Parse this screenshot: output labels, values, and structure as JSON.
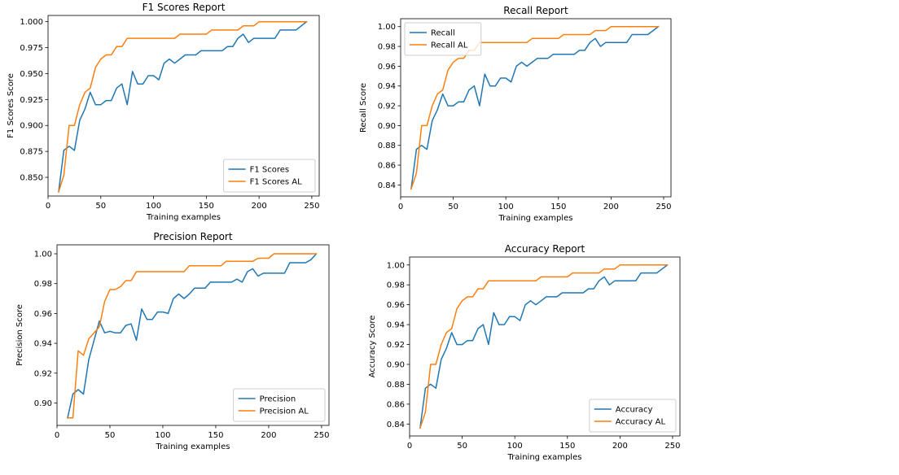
{
  "colors": {
    "series_primary": "#1f77b4",
    "series_al": "#ff7f0e"
  },
  "chart_data": [
    {
      "type": "line",
      "title": "F1 Scores Report",
      "xlabel": "Training examples",
      "ylabel": "F1 Scores Score",
      "xlim": [
        0,
        257
      ],
      "ylim": [
        0.832,
        1.006
      ],
      "xticks": [
        0,
        50,
        100,
        150,
        200,
        250
      ],
      "yticks": [
        0.85,
        0.875,
        0.9,
        0.925,
        0.95,
        0.975,
        1.0
      ],
      "ytick_labels": [
        "0.850",
        "0.875",
        "0.900",
        "0.925",
        "0.950",
        "0.975",
        "1.000"
      ],
      "legend_position": "lower-right",
      "series": [
        {
          "name": "F1 Scores",
          "x": [
            10,
            15,
            20,
            25,
            30,
            35,
            40,
            45,
            50,
            55,
            60,
            65,
            70,
            75,
            80,
            85,
            90,
            95,
            100,
            105,
            110,
            115,
            120,
            125,
            130,
            135,
            140,
            145,
            150,
            155,
            160,
            165,
            170,
            175,
            180,
            185,
            190,
            195,
            200,
            205,
            210,
            215,
            220,
            225,
            230,
            235,
            240,
            245
          ],
          "y": [
            0.836,
            0.876,
            0.88,
            0.876,
            0.905,
            0.916,
            0.932,
            0.92,
            0.92,
            0.924,
            0.924,
            0.936,
            0.94,
            0.92,
            0.952,
            0.94,
            0.94,
            0.948,
            0.948,
            0.944,
            0.96,
            0.964,
            0.96,
            0.964,
            0.968,
            0.968,
            0.968,
            0.972,
            0.972,
            0.972,
            0.972,
            0.972,
            0.976,
            0.976,
            0.984,
            0.988,
            0.98,
            0.984,
            0.984,
            0.984,
            0.984,
            0.984,
            0.992,
            0.992,
            0.992,
            0.992,
            0.996,
            1.0
          ]
        },
        {
          "name": "F1 Scores AL",
          "x": [
            10,
            15,
            20,
            25,
            30,
            35,
            40,
            45,
            50,
            55,
            60,
            65,
            70,
            75,
            80,
            85,
            90,
            95,
            100,
            105,
            110,
            115,
            120,
            125,
            130,
            135,
            140,
            145,
            150,
            155,
            160,
            165,
            170,
            175,
            180,
            185,
            190,
            195,
            200,
            205,
            210,
            215,
            220,
            225,
            230,
            235,
            240,
            245
          ],
          "y": [
            0.836,
            0.852,
            0.9,
            0.9,
            0.92,
            0.932,
            0.936,
            0.956,
            0.964,
            0.968,
            0.968,
            0.976,
            0.976,
            0.984,
            0.984,
            0.984,
            0.984,
            0.984,
            0.984,
            0.984,
            0.984,
            0.984,
            0.984,
            0.988,
            0.988,
            0.988,
            0.988,
            0.988,
            0.988,
            0.992,
            0.992,
            0.992,
            0.992,
            0.992,
            0.992,
            0.996,
            0.996,
            0.996,
            1.0,
            1.0,
            1.0,
            1.0,
            1.0,
            1.0,
            1.0,
            1.0,
            1.0,
            1.0
          ]
        }
      ]
    },
    {
      "type": "line",
      "title": "Recall Report",
      "xlabel": "Training examples",
      "ylabel": "Recall Score",
      "xlim": [
        0,
        257
      ],
      "ylim": [
        0.828,
        1.008
      ],
      "xticks": [
        0,
        50,
        100,
        150,
        200,
        250
      ],
      "yticks": [
        0.84,
        0.86,
        0.88,
        0.9,
        0.92,
        0.94,
        0.96,
        0.98,
        1.0
      ],
      "ytick_labels": [
        "0.84",
        "0.86",
        "0.88",
        "0.90",
        "0.92",
        "0.94",
        "0.96",
        "0.98",
        "1.00"
      ],
      "legend_position": "upper-left",
      "series": [
        {
          "name": "Recall",
          "x": [
            10,
            15,
            20,
            25,
            30,
            35,
            40,
            45,
            50,
            55,
            60,
            65,
            70,
            75,
            80,
            85,
            90,
            95,
            100,
            105,
            110,
            115,
            120,
            125,
            130,
            135,
            140,
            145,
            150,
            155,
            160,
            165,
            170,
            175,
            180,
            185,
            190,
            195,
            200,
            205,
            210,
            215,
            220,
            225,
            230,
            235,
            240,
            245
          ],
          "y": [
            0.836,
            0.876,
            0.88,
            0.876,
            0.905,
            0.916,
            0.932,
            0.92,
            0.92,
            0.924,
            0.924,
            0.936,
            0.94,
            0.92,
            0.952,
            0.94,
            0.94,
            0.948,
            0.948,
            0.944,
            0.96,
            0.964,
            0.96,
            0.964,
            0.968,
            0.968,
            0.968,
            0.972,
            0.972,
            0.972,
            0.972,
            0.972,
            0.976,
            0.976,
            0.984,
            0.988,
            0.98,
            0.984,
            0.984,
            0.984,
            0.984,
            0.984,
            0.992,
            0.992,
            0.992,
            0.992,
            0.996,
            1.0
          ]
        },
        {
          "name": "Recall AL",
          "x": [
            10,
            15,
            20,
            25,
            30,
            35,
            40,
            45,
            50,
            55,
            60,
            65,
            70,
            75,
            80,
            85,
            90,
            95,
            100,
            105,
            110,
            115,
            120,
            125,
            130,
            135,
            140,
            145,
            150,
            155,
            160,
            165,
            170,
            175,
            180,
            185,
            190,
            195,
            200,
            205,
            210,
            215,
            220,
            225,
            230,
            235,
            240,
            245
          ],
          "y": [
            0.836,
            0.852,
            0.9,
            0.9,
            0.92,
            0.932,
            0.936,
            0.956,
            0.964,
            0.968,
            0.968,
            0.976,
            0.976,
            0.984,
            0.984,
            0.984,
            0.984,
            0.984,
            0.984,
            0.984,
            0.984,
            0.984,
            0.984,
            0.988,
            0.988,
            0.988,
            0.988,
            0.988,
            0.988,
            0.992,
            0.992,
            0.992,
            0.992,
            0.992,
            0.992,
            0.996,
            0.996,
            0.996,
            1.0,
            1.0,
            1.0,
            1.0,
            1.0,
            1.0,
            1.0,
            1.0,
            1.0,
            1.0
          ]
        }
      ]
    },
    {
      "type": "line",
      "title": "Precision Report",
      "xlabel": "Training examples",
      "ylabel": "Precision Score",
      "xlim": [
        0,
        257
      ],
      "ylim": [
        0.885,
        1.006
      ],
      "xticks": [
        0,
        50,
        100,
        150,
        200,
        250
      ],
      "yticks": [
        0.9,
        0.92,
        0.94,
        0.96,
        0.98,
        1.0
      ],
      "ytick_labels": [
        "0.90",
        "0.92",
        "0.94",
        "0.96",
        "0.98",
        "1.00"
      ],
      "legend_position": "lower-right",
      "series": [
        {
          "name": "Precision",
          "x": [
            10,
            15,
            20,
            25,
            30,
            35,
            40,
            45,
            50,
            55,
            60,
            65,
            70,
            75,
            80,
            85,
            90,
            95,
            100,
            105,
            110,
            115,
            120,
            125,
            130,
            135,
            140,
            145,
            150,
            155,
            160,
            165,
            170,
            175,
            180,
            185,
            190,
            195,
            200,
            205,
            210,
            215,
            220,
            225,
            230,
            235,
            240,
            245
          ],
          "y": [
            0.89,
            0.906,
            0.909,
            0.906,
            0.929,
            0.942,
            0.955,
            0.947,
            0.948,
            0.947,
            0.947,
            0.952,
            0.953,
            0.942,
            0.963,
            0.956,
            0.956,
            0.961,
            0.961,
            0.96,
            0.97,
            0.973,
            0.97,
            0.973,
            0.977,
            0.977,
            0.977,
            0.981,
            0.981,
            0.981,
            0.981,
            0.981,
            0.983,
            0.981,
            0.988,
            0.99,
            0.985,
            0.987,
            0.987,
            0.987,
            0.987,
            0.987,
            0.994,
            0.994,
            0.994,
            0.994,
            0.996,
            1.0
          ]
        },
        {
          "name": "Precision AL",
          "x": [
            10,
            15,
            20,
            25,
            30,
            35,
            40,
            45,
            50,
            55,
            60,
            65,
            70,
            75,
            80,
            85,
            90,
            95,
            100,
            105,
            110,
            115,
            120,
            125,
            130,
            135,
            140,
            145,
            150,
            155,
            160,
            165,
            170,
            175,
            180,
            185,
            190,
            195,
            200,
            205,
            210,
            215,
            220,
            225,
            230,
            235,
            240,
            245
          ],
          "y": [
            0.89,
            0.89,
            0.935,
            0.932,
            0.943,
            0.947,
            0.951,
            0.968,
            0.976,
            0.976,
            0.978,
            0.982,
            0.982,
            0.988,
            0.988,
            0.988,
            0.988,
            0.988,
            0.988,
            0.988,
            0.988,
            0.988,
            0.988,
            0.992,
            0.992,
            0.992,
            0.992,
            0.992,
            0.992,
            0.992,
            0.995,
            0.995,
            0.995,
            0.995,
            0.995,
            0.995,
            0.997,
            0.997,
            0.997,
            1.0,
            1.0,
            1.0,
            1.0,
            1.0,
            1.0,
            1.0,
            1.0,
            1.0
          ]
        }
      ]
    },
    {
      "type": "line",
      "title": "Accuracy Report",
      "xlabel": "Training examples",
      "ylabel": "Accuracy Score",
      "xlim": [
        0,
        257
      ],
      "ylim": [
        0.828,
        1.008
      ],
      "xticks": [
        0,
        50,
        100,
        150,
        200,
        250
      ],
      "yticks": [
        0.84,
        0.86,
        0.88,
        0.9,
        0.92,
        0.94,
        0.96,
        0.98,
        1.0
      ],
      "ytick_labels": [
        "0.84",
        "0.86",
        "0.88",
        "0.90",
        "0.92",
        "0.94",
        "0.96",
        "0.98",
        "1.00"
      ],
      "legend_position": "lower-right",
      "series": [
        {
          "name": "Accuracy",
          "x": [
            10,
            15,
            20,
            25,
            30,
            35,
            40,
            45,
            50,
            55,
            60,
            65,
            70,
            75,
            80,
            85,
            90,
            95,
            100,
            105,
            110,
            115,
            120,
            125,
            130,
            135,
            140,
            145,
            150,
            155,
            160,
            165,
            170,
            175,
            180,
            185,
            190,
            195,
            200,
            205,
            210,
            215,
            220,
            225,
            230,
            235,
            240,
            245
          ],
          "y": [
            0.836,
            0.876,
            0.88,
            0.876,
            0.905,
            0.916,
            0.932,
            0.92,
            0.92,
            0.924,
            0.924,
            0.936,
            0.94,
            0.92,
            0.952,
            0.94,
            0.94,
            0.948,
            0.948,
            0.944,
            0.96,
            0.964,
            0.96,
            0.964,
            0.968,
            0.968,
            0.968,
            0.972,
            0.972,
            0.972,
            0.972,
            0.972,
            0.976,
            0.976,
            0.984,
            0.988,
            0.98,
            0.984,
            0.984,
            0.984,
            0.984,
            0.984,
            0.992,
            0.992,
            0.992,
            0.992,
            0.996,
            1.0
          ]
        },
        {
          "name": "Accuracy AL",
          "x": [
            10,
            15,
            20,
            25,
            30,
            35,
            40,
            45,
            50,
            55,
            60,
            65,
            70,
            75,
            80,
            85,
            90,
            95,
            100,
            105,
            110,
            115,
            120,
            125,
            130,
            135,
            140,
            145,
            150,
            155,
            160,
            165,
            170,
            175,
            180,
            185,
            190,
            195,
            200,
            205,
            210,
            215,
            220,
            225,
            230,
            235,
            240,
            245
          ],
          "y": [
            0.836,
            0.852,
            0.9,
            0.9,
            0.92,
            0.932,
            0.936,
            0.956,
            0.964,
            0.968,
            0.968,
            0.976,
            0.976,
            0.984,
            0.984,
            0.984,
            0.984,
            0.984,
            0.984,
            0.984,
            0.984,
            0.984,
            0.984,
            0.988,
            0.988,
            0.988,
            0.988,
            0.988,
            0.988,
            0.992,
            0.992,
            0.992,
            0.992,
            0.992,
            0.992,
            0.996,
            0.996,
            0.996,
            1.0,
            1.0,
            1.0,
            1.0,
            1.0,
            1.0,
            1.0,
            1.0,
            1.0,
            1.0
          ]
        }
      ]
    }
  ]
}
